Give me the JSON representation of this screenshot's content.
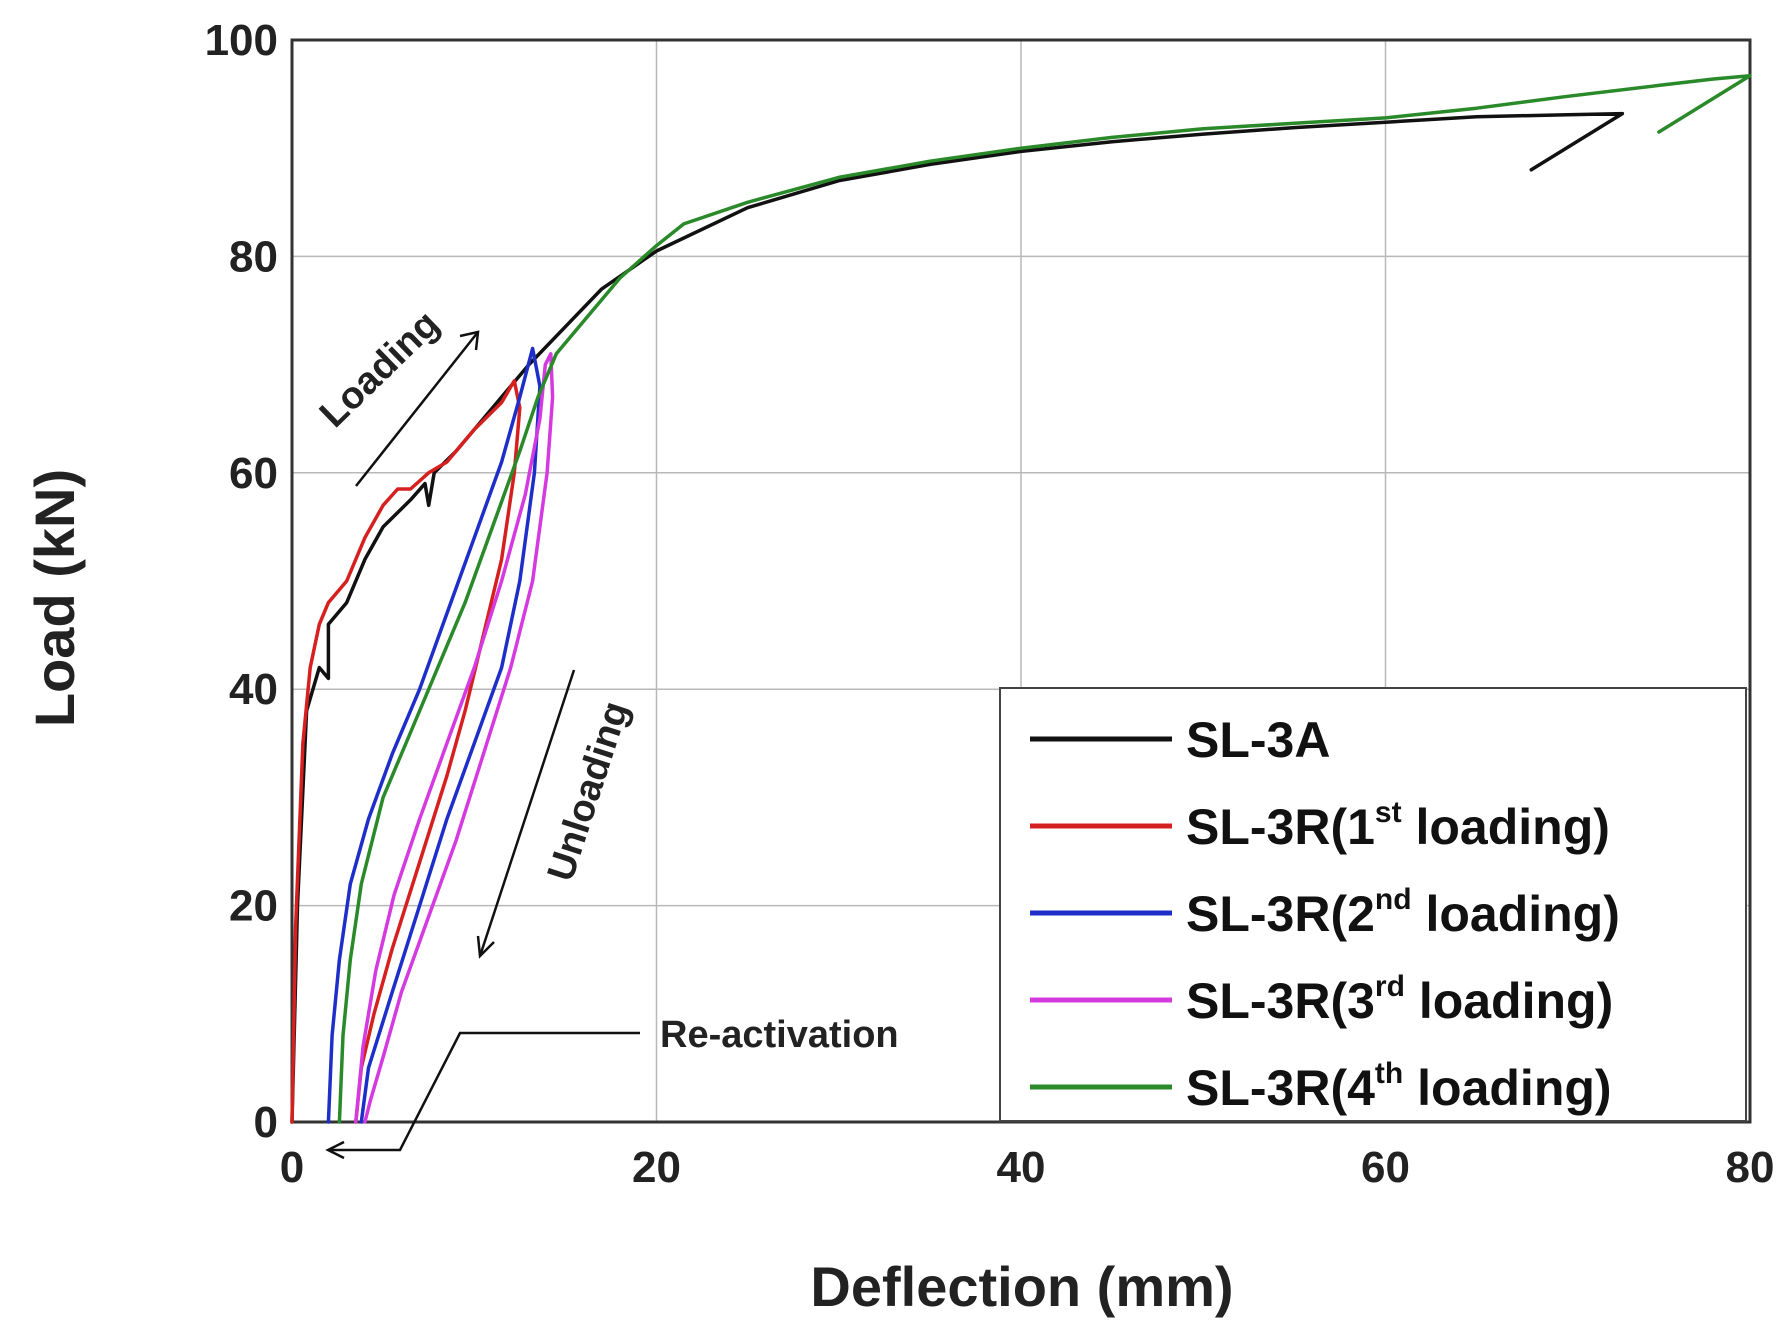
{
  "chart_data": {
    "type": "line",
    "title": "",
    "xlabel": "Deflection (mm)",
    "ylabel": "Load (kN)",
    "xlim": [
      0,
      80
    ],
    "ylim": [
      0,
      100
    ],
    "xticks": [
      "0",
      "20",
      "40",
      "60",
      "80"
    ],
    "yticks": [
      "0",
      "20",
      "40",
      "60",
      "80",
      "100"
    ],
    "grid": true,
    "legend_position": "bottom-right",
    "annotations": {
      "loading": "Loading",
      "unloading": "Unloading",
      "reactivation": "Re-activation"
    },
    "series": [
      {
        "name": "SL-3A",
        "label_main": "SL-3A",
        "label_sup": "",
        "label_tail": "",
        "color": "#111111",
        "points": [
          [
            0,
            0
          ],
          [
            0.3,
            20
          ],
          [
            0.8,
            38
          ],
          [
            1.5,
            42
          ],
          [
            2,
            41
          ],
          [
            2,
            46
          ],
          [
            3,
            48
          ],
          [
            4,
            52
          ],
          [
            5,
            55
          ],
          [
            6.5,
            57.5
          ],
          [
            7.3,
            59
          ],
          [
            7.5,
            57
          ],
          [
            7.8,
            60
          ],
          [
            9,
            62
          ],
          [
            11,
            66
          ],
          [
            13,
            70
          ],
          [
            15,
            73.5
          ],
          [
            17,
            77
          ],
          [
            20,
            80.5
          ],
          [
            25,
            84.5
          ],
          [
            30,
            87
          ],
          [
            35,
            88.5
          ],
          [
            40,
            89.7
          ],
          [
            45,
            90.6
          ],
          [
            50,
            91.3
          ],
          [
            55,
            91.9
          ],
          [
            60,
            92.4
          ],
          [
            65,
            92.9
          ],
          [
            70,
            93.1
          ],
          [
            73,
            93.2
          ],
          [
            68,
            88
          ]
        ]
      },
      {
        "name": "SL-3R(1st loading)",
        "label_main": "SL-3R(1",
        "label_sup": "st",
        "label_tail": " loading)",
        "color": "#d62020",
        "points": [
          [
            0,
            0
          ],
          [
            0.2,
            18
          ],
          [
            0.6,
            35
          ],
          [
            1,
            42
          ],
          [
            1.5,
            46
          ],
          [
            2,
            48
          ],
          [
            3,
            50
          ],
          [
            4,
            54
          ],
          [
            5,
            57
          ],
          [
            5.8,
            58.5
          ],
          [
            6.5,
            58.5
          ],
          [
            7.5,
            60
          ],
          [
            8.5,
            61
          ],
          [
            10,
            64
          ],
          [
            11.5,
            66.5
          ],
          [
            12.2,
            68.5
          ],
          [
            12.5,
            66
          ],
          [
            12.2,
            60
          ],
          [
            11.5,
            52
          ],
          [
            10.5,
            45
          ],
          [
            9.5,
            38
          ],
          [
            8.5,
            32
          ],
          [
            7,
            24
          ],
          [
            5.5,
            16
          ],
          [
            4.5,
            10
          ],
          [
            3.8,
            5
          ],
          [
            3.5,
            0
          ]
        ]
      },
      {
        "name": "SL-3R(2nd loading)",
        "label_main": "SL-3R(2",
        "label_sup": "nd",
        "label_tail": " loading)",
        "color": "#1e2ec8",
        "points": [
          [
            2,
            0
          ],
          [
            2.2,
            8
          ],
          [
            2.6,
            15
          ],
          [
            3.2,
            22
          ],
          [
            4.2,
            28
          ],
          [
            5.5,
            34
          ],
          [
            7,
            40
          ],
          [
            8.5,
            47
          ],
          [
            10,
            54
          ],
          [
            11.5,
            61
          ],
          [
            12.5,
            67
          ],
          [
            13.2,
            71.5
          ],
          [
            13.6,
            68
          ],
          [
            13.3,
            60
          ],
          [
            12.5,
            50
          ],
          [
            11.5,
            42
          ],
          [
            10,
            35
          ],
          [
            8.5,
            28
          ],
          [
            7,
            20
          ],
          [
            5.5,
            12
          ],
          [
            4.2,
            5
          ],
          [
            3.8,
            0
          ]
        ]
      },
      {
        "name": "SL-3R(3rd loading)",
        "label_main": "SL-3R(3",
        "label_sup": "rd",
        "label_tail": " loading)",
        "color": "#d43ae0",
        "points": [
          [
            3.5,
            0
          ],
          [
            3.9,
            7
          ],
          [
            4.6,
            14
          ],
          [
            5.6,
            21
          ],
          [
            7,
            28
          ],
          [
            8.5,
            35
          ],
          [
            10,
            42
          ],
          [
            11.5,
            50
          ],
          [
            12.8,
            58
          ],
          [
            13.6,
            65
          ],
          [
            13.9,
            70
          ],
          [
            14.2,
            71
          ],
          [
            14.3,
            67
          ],
          [
            14.0,
            60
          ],
          [
            13.2,
            50
          ],
          [
            12.0,
            42
          ],
          [
            10.5,
            34
          ],
          [
            9,
            26
          ],
          [
            7.5,
            19
          ],
          [
            6,
            12
          ],
          [
            5,
            6
          ],
          [
            4.3,
            2
          ],
          [
            4,
            0
          ]
        ]
      },
      {
        "name": "SL-3R(4th loading)",
        "label_main": "SL-3R(4",
        "label_sup": "th",
        "label_tail": " loading)",
        "color": "#2a8a2a",
        "points": [
          [
            2.6,
            0
          ],
          [
            2.8,
            8
          ],
          [
            3.2,
            15
          ],
          [
            3.8,
            22
          ],
          [
            5,
            30
          ],
          [
            6.5,
            36
          ],
          [
            8,
            42
          ],
          [
            9.5,
            48
          ],
          [
            11,
            55
          ],
          [
            12.5,
            62
          ],
          [
            13.5,
            67
          ],
          [
            14.5,
            71
          ],
          [
            16,
            74
          ],
          [
            18,
            78
          ],
          [
            20,
            81
          ],
          [
            21.5,
            83
          ],
          [
            25,
            85
          ],
          [
            30,
            87.3
          ],
          [
            35,
            88.8
          ],
          [
            40,
            90
          ],
          [
            45,
            91
          ],
          [
            50,
            91.8
          ],
          [
            55,
            92.3
          ],
          [
            60,
            92.8
          ],
          [
            65,
            93.7
          ],
          [
            70,
            94.8
          ],
          [
            75,
            95.8
          ],
          [
            78,
            96.4
          ],
          [
            80,
            96.7
          ],
          [
            75,
            91.5
          ]
        ]
      }
    ]
  }
}
